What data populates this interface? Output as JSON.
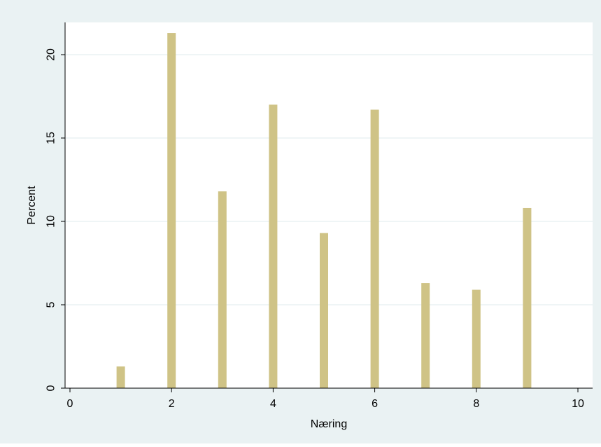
{
  "chart_data": {
    "type": "bar",
    "xlabel": "Næring",
    "ylabel": "Percent",
    "x": [
      1,
      2,
      3,
      4,
      5,
      6,
      7,
      8,
      9
    ],
    "values": [
      1.3,
      21.3,
      11.8,
      17.0,
      9.3,
      16.7,
      6.3,
      5.9,
      10.8
    ],
    "xlim": [
      0,
      10
    ],
    "ylim": [
      0,
      22
    ],
    "xticks": [
      0,
      2,
      4,
      6,
      8,
      10
    ],
    "yticks": [
      0,
      5,
      10,
      15,
      20
    ],
    "xtick_labels": [
      "0",
      "2",
      "4",
      "6",
      "8",
      "10"
    ],
    "ytick_labels": [
      "0",
      "5",
      "10",
      "15",
      "20"
    ],
    "grid": "horizontal",
    "legend": "none"
  },
  "colors": {
    "bar": "#cfc386",
    "outer_background": "#eaf2f3",
    "plot_background": "#ffffff",
    "gridline": "#eaf2f3",
    "axis": "#000000"
  }
}
